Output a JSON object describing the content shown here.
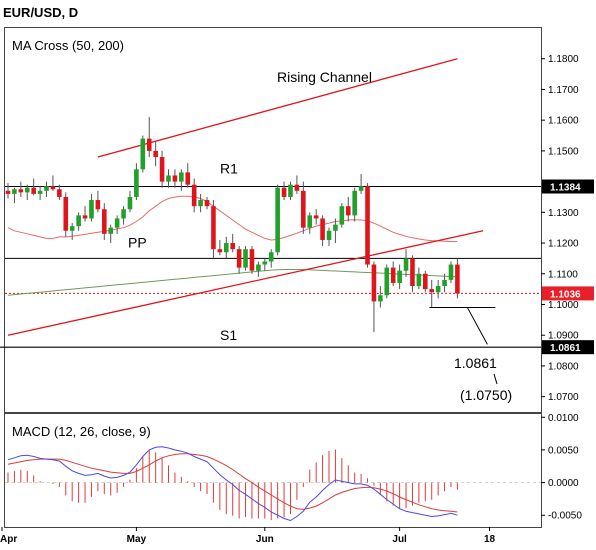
{
  "title": "EUR/USD, D",
  "colors": {
    "bull": "#1fa12a",
    "bear": "#e0151c",
    "ma50": "#e86a6a",
    "ma200": "#6e9a5e",
    "channel": "#e0151c",
    "macd": "#4a4ae0",
    "signal": "#e03a3a",
    "hist": "#e03a3a",
    "price_badge": "#e8202a",
    "level_badge": "#000000"
  },
  "chart_data": [
    {
      "type": "candlestick",
      "indicator_label": "MA Cross (50, 200)",
      "x_ticks": [
        "Apr",
        "May",
        "Jun",
        "Jul",
        "18"
      ],
      "y_ticks": [
        "1.1800",
        "1.1700",
        "1.1600",
        "1.1500",
        "1.1300",
        "1.1200",
        "1.1100",
        "1.1000",
        "1.0900",
        "1.0800",
        "1.0700"
      ],
      "ylim": [
        1.065,
        1.19
      ],
      "levels": [
        {
          "name": "R1",
          "value": 1.1384
        },
        {
          "name": "PP",
          "value": 1.115
        },
        {
          "name": "S1",
          "value": 1.0861
        }
      ],
      "last_price": 1.1036,
      "price_tags": [
        "1.1384",
        "1.1036",
        "1.0861"
      ],
      "annotations": [
        "Rising Channel",
        "1.0861",
        "(1.0750)"
      ],
      "candles": [
        [
          1.137,
          1.1395,
          1.1345,
          1.136
        ],
        [
          1.136,
          1.138,
          1.133,
          1.1375
        ],
        [
          1.1375,
          1.14,
          1.135,
          1.1365
        ],
        [
          1.1365,
          1.139,
          1.134,
          1.138
        ],
        [
          1.138,
          1.141,
          1.1355,
          1.136
        ],
        [
          1.136,
          1.1385,
          1.134,
          1.137
        ],
        [
          1.137,
          1.14,
          1.135,
          1.1385
        ],
        [
          1.1385,
          1.142,
          1.137,
          1.1375
        ],
        [
          1.1375,
          1.139,
          1.134,
          1.135
        ],
        [
          1.135,
          1.1365,
          1.122,
          1.124
        ],
        [
          1.124,
          1.1265,
          1.121,
          1.1255
        ],
        [
          1.1255,
          1.13,
          1.124,
          1.129
        ],
        [
          1.129,
          1.132,
          1.127,
          1.128
        ],
        [
          1.128,
          1.136,
          1.127,
          1.134
        ],
        [
          1.134,
          1.137,
          1.13,
          1.131
        ],
        [
          1.131,
          1.133,
          1.121,
          1.123
        ],
        [
          1.123,
          1.126,
          1.12,
          1.125
        ],
        [
          1.125,
          1.129,
          1.123,
          1.128
        ],
        [
          1.128,
          1.132,
          1.126,
          1.131
        ],
        [
          1.131,
          1.137,
          1.13,
          1.135
        ],
        [
          1.135,
          1.146,
          1.134,
          1.144
        ],
        [
          1.144,
          1.155,
          1.143,
          1.154
        ],
        [
          1.154,
          1.161,
          1.148,
          1.15
        ],
        [
          1.15,
          1.153,
          1.145,
          1.148
        ],
        [
          1.148,
          1.15,
          1.138,
          1.14
        ],
        [
          1.14,
          1.144,
          1.138,
          1.142
        ],
        [
          1.142,
          1.144,
          1.138,
          1.14
        ],
        [
          1.14,
          1.144,
          1.137,
          1.143
        ],
        [
          1.143,
          1.146,
          1.138,
          1.139
        ],
        [
          1.139,
          1.141,
          1.13,
          1.132
        ],
        [
          1.132,
          1.136,
          1.13,
          1.134
        ],
        [
          1.134,
          1.135,
          1.131,
          1.132
        ],
        [
          1.132,
          1.134,
          1.115,
          1.118
        ],
        [
          1.118,
          1.121,
          1.116,
          1.117
        ],
        [
          1.117,
          1.122,
          1.115,
          1.12
        ],
        [
          1.12,
          1.123,
          1.117,
          1.118
        ],
        [
          1.118,
          1.119,
          1.11,
          1.112
        ],
        [
          1.112,
          1.119,
          1.111,
          1.118
        ],
        [
          1.118,
          1.119,
          1.11,
          1.111
        ],
        [
          1.111,
          1.114,
          1.109,
          1.113
        ],
        [
          1.113,
          1.115,
          1.111,
          1.114
        ],
        [
          1.114,
          1.118,
          1.112,
          1.117
        ],
        [
          1.117,
          1.139,
          1.116,
          1.138
        ],
        [
          1.138,
          1.14,
          1.134,
          1.135
        ],
        [
          1.135,
          1.14,
          1.134,
          1.139
        ],
        [
          1.139,
          1.142,
          1.136,
          1.137
        ],
        [
          1.137,
          1.14,
          1.123,
          1.125
        ],
        [
          1.125,
          1.13,
          1.123,
          1.129
        ],
        [
          1.129,
          1.131,
          1.126,
          1.128
        ],
        [
          1.128,
          1.129,
          1.119,
          1.121
        ],
        [
          1.121,
          1.125,
          1.119,
          1.124
        ],
        [
          1.124,
          1.128,
          1.12,
          1.126
        ],
        [
          1.126,
          1.133,
          1.125,
          1.132
        ],
        [
          1.132,
          1.135,
          1.127,
          1.129
        ],
        [
          1.129,
          1.138,
          1.127,
          1.137
        ],
        [
          1.137,
          1.1425,
          1.136,
          1.1385
        ],
        [
          1.1385,
          1.1395,
          1.112,
          1.113
        ],
        [
          1.113,
          1.114,
          1.091,
          1.101
        ],
        [
          1.101,
          1.106,
          1.099,
          1.103
        ],
        [
          1.103,
          1.113,
          1.102,
          1.112
        ],
        [
          1.112,
          1.114,
          1.106,
          1.107
        ],
        [
          1.107,
          1.113,
          1.105,
          1.111
        ],
        [
          1.111,
          1.118,
          1.109,
          1.115
        ],
        [
          1.115,
          1.116,
          1.104,
          1.106
        ],
        [
          1.106,
          1.112,
          1.105,
          1.11
        ],
        [
          1.11,
          1.111,
          1.104,
          1.105
        ],
        [
          1.105,
          1.108,
          1.099,
          1.104
        ],
        [
          1.104,
          1.108,
          1.102,
          1.106
        ],
        [
          1.106,
          1.11,
          1.104,
          1.108
        ],
        [
          1.108,
          1.114,
          1.107,
          1.113
        ],
        [
          1.113,
          1.115,
          1.102,
          1.1036
        ]
      ],
      "ma50": [
        1.125,
        1.124,
        1.1235,
        1.123,
        1.1225,
        1.122,
        1.1215,
        1.1215,
        1.122,
        1.122,
        1.1222,
        1.1225,
        1.1228,
        1.1232,
        1.1235,
        1.1238,
        1.1242,
        1.1246,
        1.125,
        1.1258,
        1.127,
        1.1285,
        1.1305,
        1.132,
        1.1335,
        1.1345,
        1.135,
        1.1352,
        1.1352,
        1.135,
        1.1345,
        1.1335,
        1.132,
        1.1305,
        1.129,
        1.1275,
        1.126,
        1.1245,
        1.1235,
        1.1225,
        1.1215,
        1.121,
        1.1212,
        1.1218,
        1.1225,
        1.1232,
        1.124,
        1.1248,
        1.1255,
        1.126,
        1.1265,
        1.127,
        1.1272,
        1.1275,
        1.1276,
        1.1275,
        1.1272,
        1.1265,
        1.1255,
        1.1245,
        1.1235,
        1.1228,
        1.1222,
        1.1217,
        1.1213,
        1.121,
        1.1208,
        1.1207,
        1.1206,
        1.1205,
        1.1205
      ],
      "ma200": [
        1.103,
        1.1032,
        1.1034,
        1.1036,
        1.1038,
        1.104,
        1.1042,
        1.1044,
        1.1046,
        1.1048,
        1.105,
        1.1052,
        1.1054,
        1.1056,
        1.1058,
        1.106,
        1.1062,
        1.1064,
        1.1066,
        1.1068,
        1.107,
        1.1072,
        1.1074,
        1.1076,
        1.1078,
        1.108,
        1.1082,
        1.1084,
        1.1086,
        1.1088,
        1.109,
        1.1092,
        1.1094,
        1.1096,
        1.1098,
        1.11,
        1.1102,
        1.1104,
        1.1106,
        1.1108,
        1.111,
        1.1112,
        1.1113,
        1.1114,
        1.1114,
        1.1114,
        1.1114,
        1.1113,
        1.1112,
        1.1111,
        1.111,
        1.1109,
        1.1108,
        1.1107,
        1.1106,
        1.1105,
        1.1104,
        1.1103,
        1.1102,
        1.1101,
        1.11,
        1.1099,
        1.1098,
        1.1097,
        1.1096,
        1.1095,
        1.1094,
        1.1093,
        1.1092,
        1.1091,
        1.109
      ],
      "channel_upper": [
        [
          14,
          1.148
        ],
        [
          70,
          1.18
        ]
      ],
      "channel_lower": [
        [
          0,
          1.09
        ],
        [
          74,
          1.124
        ]
      ]
    },
    {
      "type": "line",
      "indicator_label": "MACD (12, 26, close, 9)",
      "y_ticks": [
        "0.0100",
        "0.0050",
        "0.0000",
        "-0.0050"
      ],
      "ylim": [
        -0.0068,
        0.0105
      ],
      "series": [
        {
          "values": [
            0.0035,
            0.0038,
            0.0041,
            0.0042,
            0.004,
            0.0037,
            0.0036,
            0.0035,
            0.0033,
            0.0025,
            0.0018,
            0.0014,
            0.0011,
            0.0012,
            0.0014,
            0.001,
            0.0007,
            0.0008,
            0.0011,
            0.0016,
            0.0027,
            0.004,
            0.005,
            0.0054,
            0.0055,
            0.0053,
            0.005,
            0.0048,
            0.0045,
            0.004,
            0.0036,
            0.0032,
            0.0022,
            0.0012,
            0.0004,
            -0.0003,
            -0.0012,
            -0.0018,
            -0.0025,
            -0.0032,
            -0.0038,
            -0.0045,
            -0.005,
            -0.0055,
            -0.0058,
            -0.0052,
            -0.0044,
            -0.003,
            -0.0022,
            -0.0012,
            -0.0003,
            0.0004,
            0.0002,
            0.0,
            -0.0002,
            -0.0002,
            -0.0004,
            -0.001,
            -0.0018,
            -0.0026,
            -0.0033,
            -0.004,
            -0.0044,
            -0.0046,
            -0.0048,
            -0.005,
            -0.0052,
            -0.0051,
            -0.0049,
            -0.0047,
            -0.005
          ]
        },
        {
          "values": [
            0.0028,
            0.003,
            0.0032,
            0.0034,
            0.0035,
            0.0036,
            0.0036,
            0.0036,
            0.0036,
            0.0034,
            0.0031,
            0.0028,
            0.0025,
            0.0022,
            0.002,
            0.0018,
            0.0016,
            0.0015,
            0.0014,
            0.0014,
            0.0017,
            0.0022,
            0.0027,
            0.0033,
            0.0038,
            0.0041,
            0.0043,
            0.0044,
            0.0044,
            0.0043,
            0.0042,
            0.004,
            0.0036,
            0.0031,
            0.0026,
            0.002,
            0.0013,
            0.0006,
            0.0,
            -0.0007,
            -0.0013,
            -0.0019,
            -0.0025,
            -0.0031,
            -0.0036,
            -0.004,
            -0.0041,
            -0.0039,
            -0.0036,
            -0.0031,
            -0.0025,
            -0.0019,
            -0.0015,
            -0.0012,
            -0.0009,
            -0.0008,
            -0.0007,
            -0.0008,
            -0.001,
            -0.0013,
            -0.0017,
            -0.0022,
            -0.0026,
            -0.003,
            -0.0034,
            -0.0037,
            -0.004,
            -0.0042,
            -0.0043,
            -0.0044,
            -0.0045
          ]
        }
      ]
    }
  ]
}
